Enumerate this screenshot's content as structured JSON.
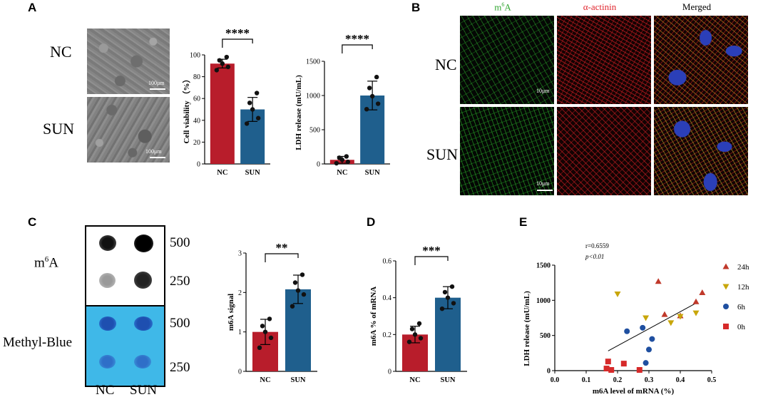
{
  "panels": {
    "A": "A",
    "B": "B",
    "C": "C",
    "D": "D",
    "E": "E"
  },
  "panelA": {
    "row_labels": [
      "NC",
      "SUN"
    ],
    "scale_labels": [
      "100μm",
      "100μm"
    ]
  },
  "panelB": {
    "col_titles": [
      "m6A",
      "α-actinin",
      "Merged"
    ],
    "row_labels": [
      "NC",
      "SUN"
    ],
    "scale_labels": [
      "10μm",
      "10μm"
    ],
    "colors": {
      "m6A": "#2fa52f",
      "alpha_actinin": "#e0242c",
      "merged": "#000000"
    }
  },
  "panelC": {
    "row_labels": [
      "m6A",
      "Methyl-Blue"
    ],
    "amount_labels": [
      "500",
      "250",
      "500",
      "250"
    ],
    "col_labels": [
      "NC",
      "SUN"
    ]
  },
  "colors": {
    "NC": "#b81d2b",
    "SUN": "#1f5f8d"
  },
  "chart_data": [
    {
      "id": "cell-viability",
      "type": "bar",
      "categories": [
        "NC",
        "SUN"
      ],
      "values": [
        92,
        50
      ],
      "errors": [
        4,
        11
      ],
      "points": [
        [
          86,
          89,
          92,
          95,
          98
        ],
        [
          37,
          42,
          50,
          56,
          65
        ]
      ],
      "ylabel": "Cell viability （%）",
      "yticks": [
        0,
        20,
        40,
        60,
        80,
        100
      ],
      "ylim": [
        0,
        100
      ],
      "significance": "****"
    },
    {
      "id": "ldh-release",
      "type": "bar",
      "categories": [
        "NC",
        "SUN"
      ],
      "values": [
        60,
        1000
      ],
      "errors": [
        50,
        210
      ],
      "points": [
        [
          10,
          30,
          60,
          90,
          110
        ],
        [
          800,
          880,
          990,
          1110,
          1270
        ]
      ],
      "ylabel": "LDH release (mU/mL)",
      "yticks": [
        0,
        500,
        1000,
        1500
      ],
      "ylim": [
        0,
        1500
      ],
      "significance": "****"
    },
    {
      "id": "m6a-signal",
      "type": "bar",
      "categories": [
        "NC",
        "SUN"
      ],
      "values": [
        1.0,
        2.08
      ],
      "errors": [
        0.32,
        0.36
      ],
      "points": [
        [
          0.6,
          0.85,
          1.0,
          1.15,
          1.33
        ],
        [
          1.65,
          1.95,
          2.05,
          2.25,
          2.45
        ]
      ],
      "ylabel": "m6A signal",
      "yticks": [
        0,
        1,
        2,
        3
      ],
      "ylim": [
        0,
        3
      ],
      "significance": "**"
    },
    {
      "id": "m6a-percent",
      "type": "bar",
      "categories": [
        "NC",
        "SUN"
      ],
      "values": [
        0.2,
        0.4
      ],
      "errors": [
        0.045,
        0.06
      ],
      "points": [
        [
          0.16,
          0.18,
          0.2,
          0.23,
          0.26
        ],
        [
          0.34,
          0.37,
          0.4,
          0.43,
          0.46
        ]
      ],
      "ylabel": "m6A % of mRNA",
      "yticks": [
        0,
        0.2,
        0.4,
        0.6
      ],
      "ylim": [
        0,
        0.6
      ],
      "significance": "***"
    },
    {
      "id": "correlation",
      "type": "scatter",
      "annotation_r": "r=0.6559",
      "annotation_p": "p<0.01",
      "xlabel": "m6A level of mRNA (%)",
      "ylabel": "LDH release (mU/mL)",
      "xticks": [
        0.0,
        0.1,
        0.2,
        0.3,
        0.4,
        0.5
      ],
      "yticks": [
        0,
        500,
        1000,
        1500
      ],
      "xlim": [
        0,
        0.5
      ],
      "ylim": [
        0,
        1500
      ],
      "series": [
        {
          "name": "24h",
          "color": "#c0392b",
          "marker": "triangle-up",
          "x": [
            0.33,
            0.35,
            0.4,
            0.45,
            0.47
          ],
          "y": [
            1270,
            800,
            780,
            980,
            1110
          ]
        },
        {
          "name": "12h",
          "color": "#c8a60a",
          "marker": "triangle-down",
          "x": [
            0.2,
            0.29,
            0.37,
            0.4,
            0.45
          ],
          "y": [
            1090,
            750,
            680,
            770,
            820
          ]
        },
        {
          "name": "6h",
          "color": "#1f4fa0",
          "marker": "circle",
          "x": [
            0.23,
            0.28,
            0.29,
            0.3,
            0.31
          ],
          "y": [
            560,
            610,
            110,
            300,
            450
          ]
        },
        {
          "name": "0h",
          "color": "#d62a2a",
          "marker": "square",
          "x": [
            0.165,
            0.17,
            0.18,
            0.22,
            0.27
          ],
          "y": [
            30,
            130,
            10,
            100,
            10
          ]
        }
      ],
      "fit_line": {
        "x": [
          0.17,
          0.45
        ],
        "y": [
          280,
          960
        ]
      }
    }
  ]
}
